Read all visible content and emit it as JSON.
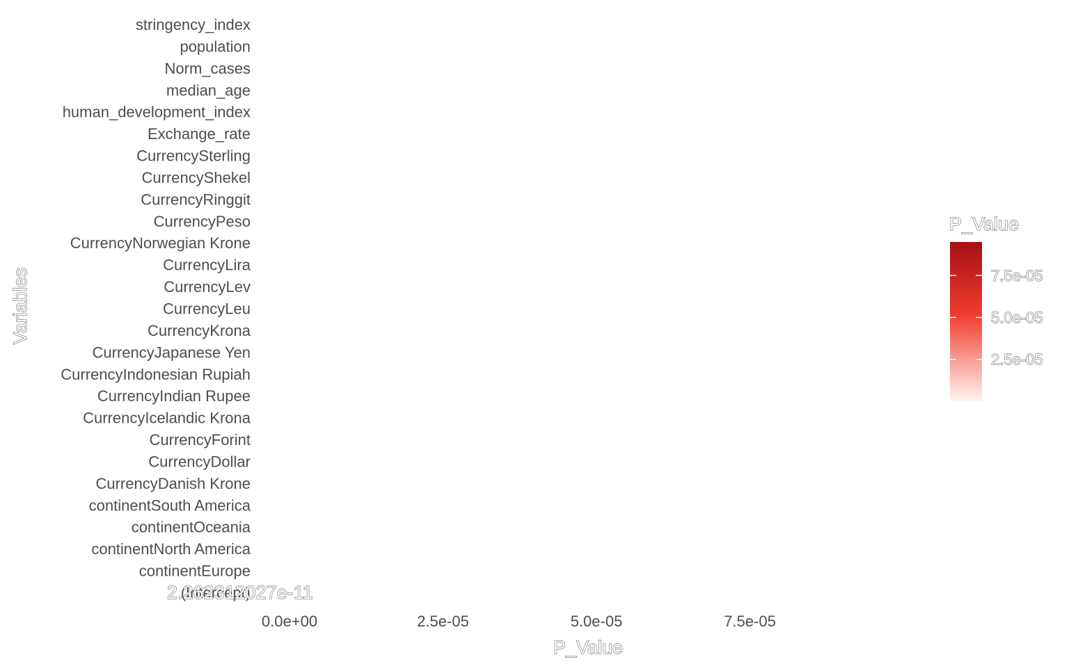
{
  "chart_data": {
    "type": "bar",
    "orientation": "horizontal",
    "categories": [
      "(Intercept)",
      "continentEurope",
      "continentNorth America",
      "continentOceania",
      "continentSouth America",
      "CurrencyDanish Krone",
      "CurrencyDollar",
      "CurrencyForint",
      "CurrencyIcelandic Krona",
      "CurrencyIndian Rupee",
      "CurrencyIndonesian Rupiah",
      "CurrencyJapanese Yen",
      "CurrencyKrona",
      "CurrencyLeu",
      "CurrencyLev",
      "CurrencyLira",
      "CurrencyNorwegian Krone",
      "CurrencyPeso",
      "CurrencyRinggit",
      "CurrencyShekel",
      "CurrencySterling",
      "Exchange_rate",
      "human_development_index",
      "median_age",
      "Norm_cases",
      "population",
      "stringency_index"
    ],
    "values": [
      2.262312027e-11,
      null,
      null,
      null,
      null,
      null,
      null,
      null,
      null,
      null,
      null,
      null,
      null,
      null,
      null,
      null,
      null,
      null,
      null,
      null,
      null,
      null,
      null,
      null,
      null,
      null,
      null
    ],
    "data_labels": [
      "2.262312027e-11"
    ],
    "xlabel": "P_Value",
    "ylabel": "Variables",
    "x_ticks": [
      "0.0e+00",
      "2.5e-05",
      "5.0e-05",
      "7.5e-05"
    ],
    "x_tick_values": [
      0,
      2.5e-05,
      5e-05,
      7.5e-05
    ],
    "xlim": [
      0,
      0.0001
    ],
    "grid": false,
    "legend": {
      "title": "P_Value",
      "type": "colorbar",
      "placement": "right",
      "ticks": [
        "2.5e-05",
        "5.0e-05",
        "7.5e-05"
      ],
      "tick_values": [
        2.5e-05,
        5e-05,
        7.5e-05
      ],
      "range": [
        0,
        9.5e-05
      ],
      "color_low": "#fff5f0",
      "color_mid": "#ef3b2c",
      "color_high": "#a50f15"
    }
  }
}
